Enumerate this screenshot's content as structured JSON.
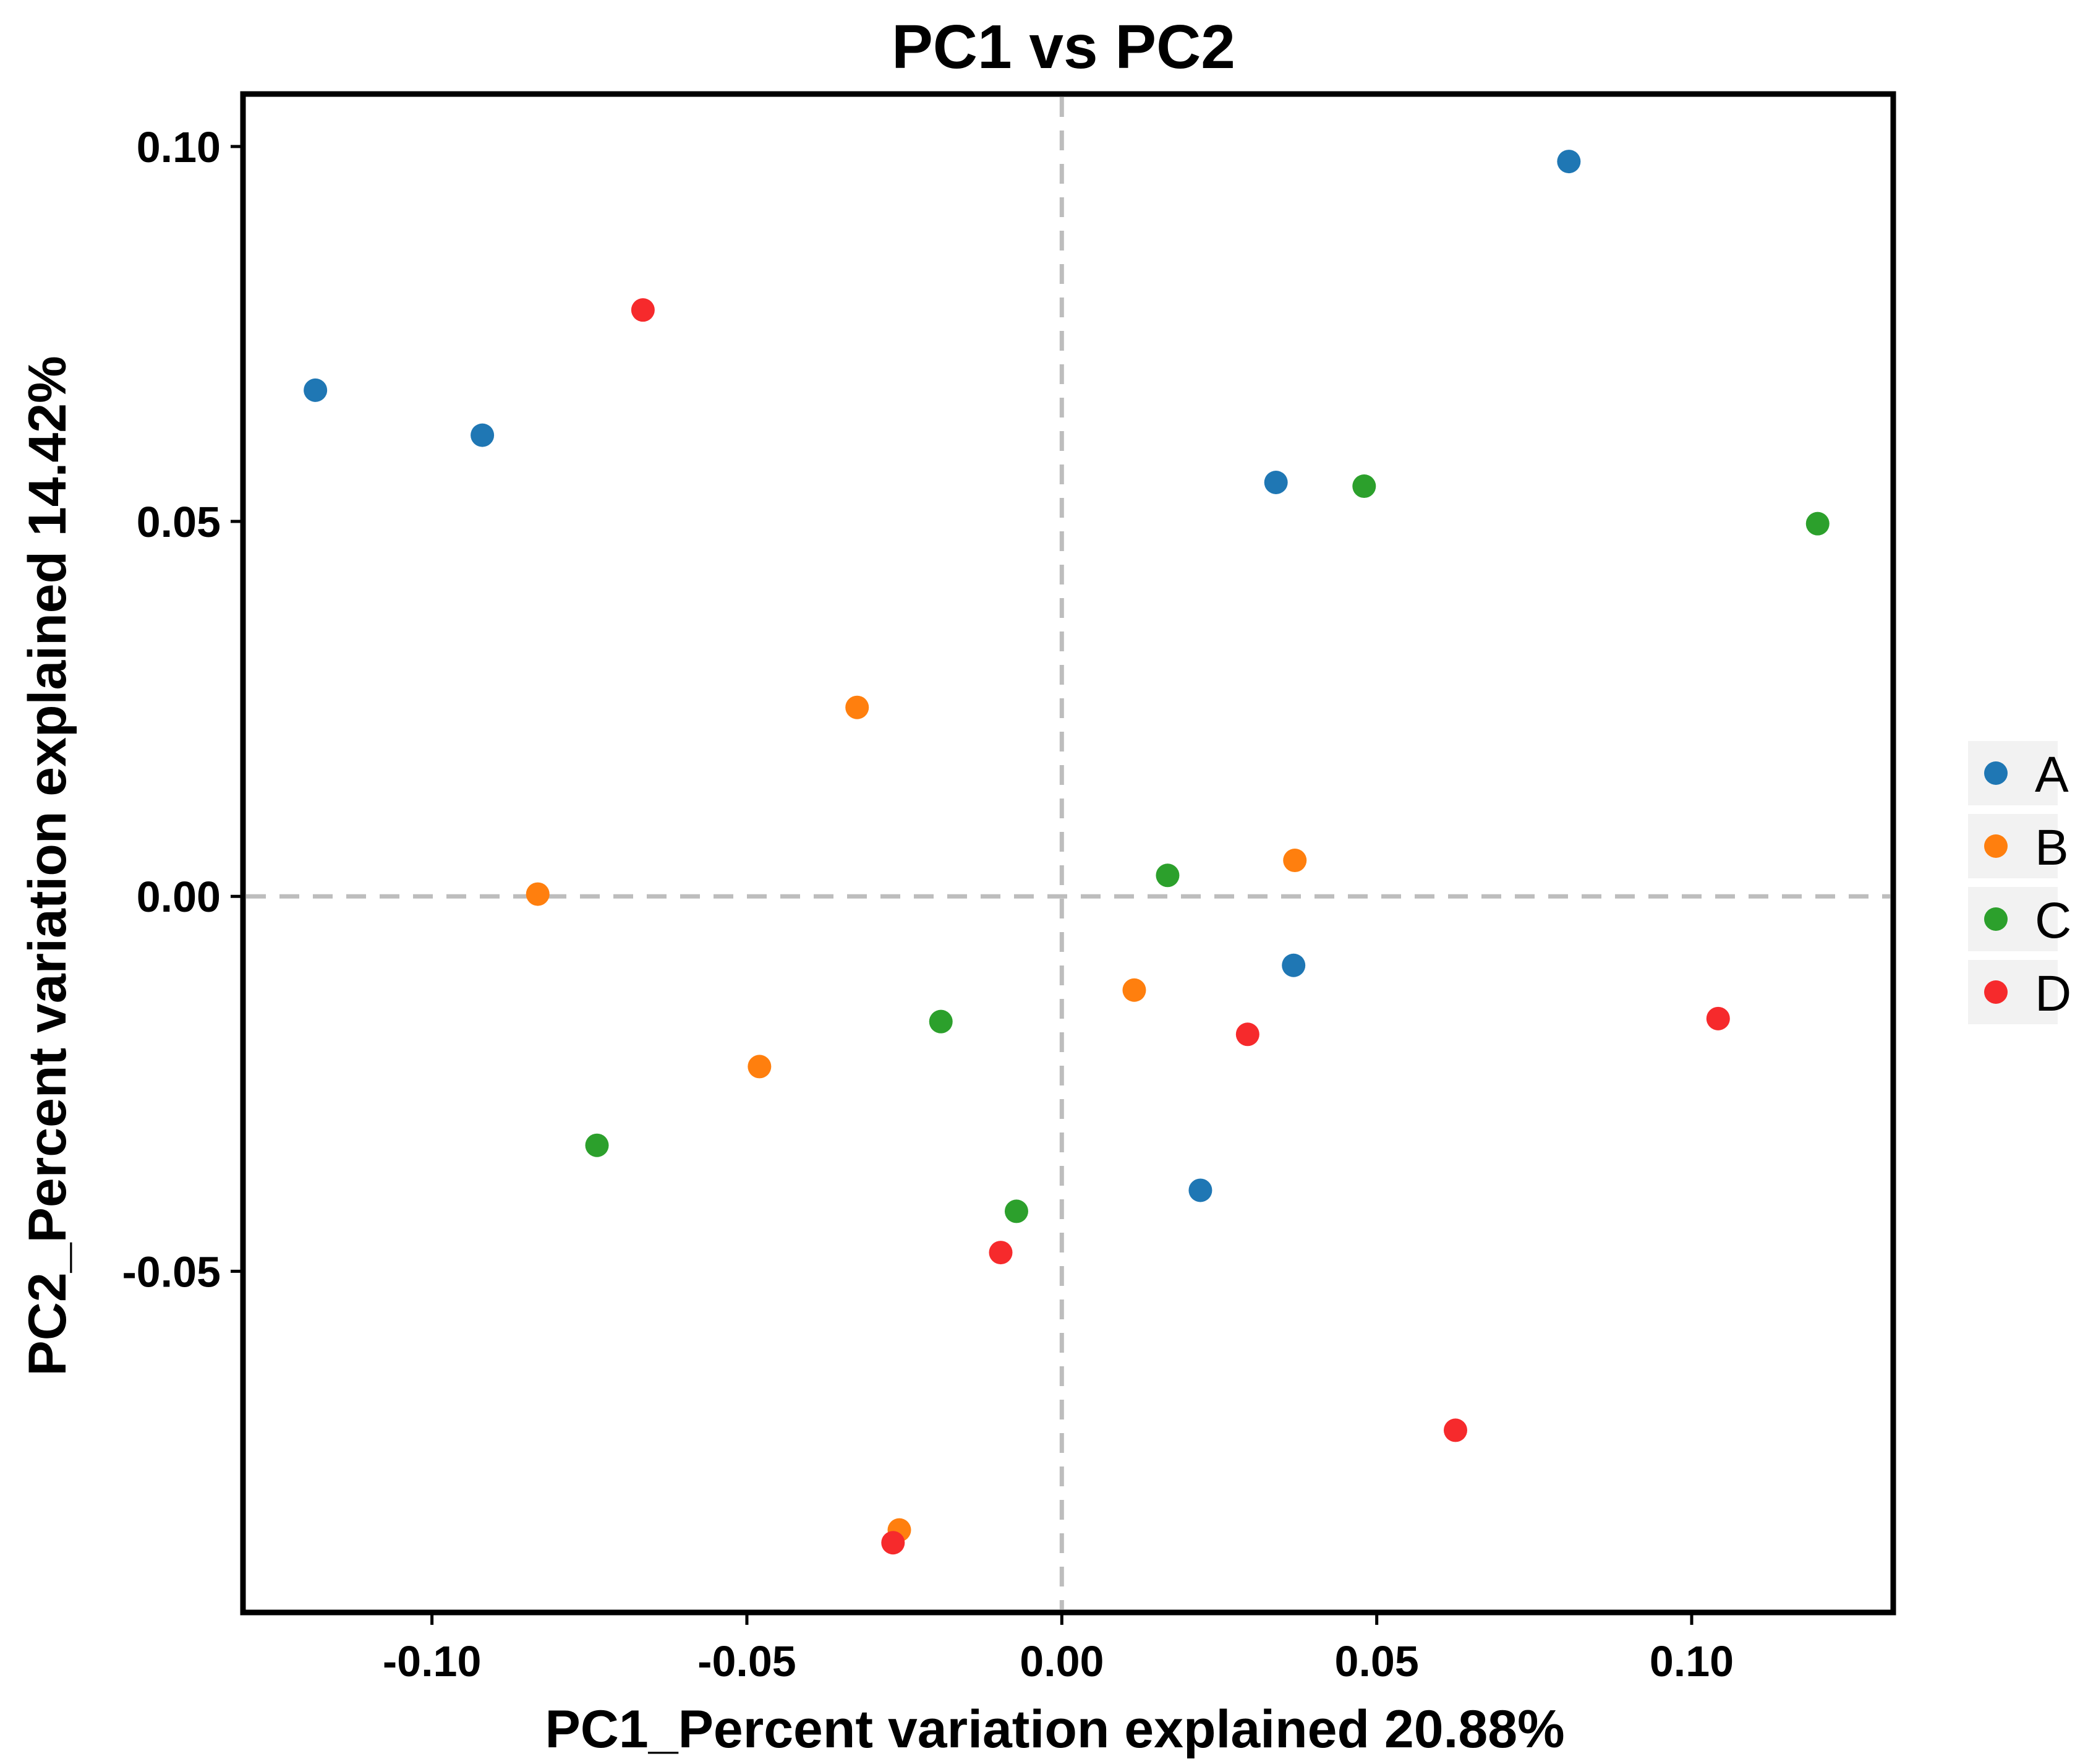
{
  "chart_data": {
    "type": "scatter",
    "title": "PC1 vs PC2",
    "xlabel": "PC1_Percent variation explained 20.88%",
    "ylabel": "PC2_Percent variation explained 14.42%",
    "xlim": [
      -0.13,
      0.132
    ],
    "ylim": [
      -0.0955,
      0.107
    ],
    "x_ticks": [
      -0.1,
      -0.05,
      0.0,
      0.05,
      0.1
    ],
    "x_tick_labels": [
      "-0.10",
      "-0.05",
      "0.00",
      "0.05",
      "0.10"
    ],
    "y_ticks": [
      -0.05,
      0.0,
      0.05,
      0.1
    ],
    "y_tick_labels": [
      "-0.05",
      "0.00",
      "0.05",
      "0.10"
    ],
    "reference_lines": {
      "x": 0.0,
      "y": 0.0,
      "style": "dashed"
    },
    "legend_position": "right",
    "series": [
      {
        "name": "A",
        "color": "#1F77B4",
        "points": [
          [
            -0.1185,
            0.0675
          ],
          [
            -0.092,
            0.0615
          ],
          [
            0.034,
            0.0552
          ],
          [
            0.0805,
            0.098
          ],
          [
            0.0368,
            -0.0092
          ],
          [
            0.022,
            -0.0392
          ]
        ]
      },
      {
        "name": "B",
        "color": "#FF7F0E",
        "points": [
          [
            -0.0325,
            0.0252
          ],
          [
            -0.0832,
            0.0003
          ],
          [
            -0.048,
            -0.0227
          ],
          [
            0.037,
            0.0048
          ],
          [
            0.0115,
            -0.0125
          ],
          [
            -0.0258,
            -0.0845
          ]
        ]
      },
      {
        "name": "C",
        "color": "#2CA02C",
        "points": [
          [
            0.048,
            0.0547
          ],
          [
            0.12,
            0.0497
          ],
          [
            0.0168,
            0.0028
          ],
          [
            -0.0192,
            -0.0167
          ],
          [
            -0.0738,
            -0.0332
          ],
          [
            -0.0072,
            -0.042
          ]
        ]
      },
      {
        "name": "D",
        "color": "#F62A2C",
        "points": [
          [
            -0.0665,
            0.0782
          ],
          [
            0.0295,
            -0.0184
          ],
          [
            0.1042,
            -0.0163
          ],
          [
            -0.0097,
            -0.0475
          ],
          [
            0.0625,
            -0.0712
          ],
          [
            -0.0268,
            -0.0862
          ]
        ]
      }
    ]
  }
}
